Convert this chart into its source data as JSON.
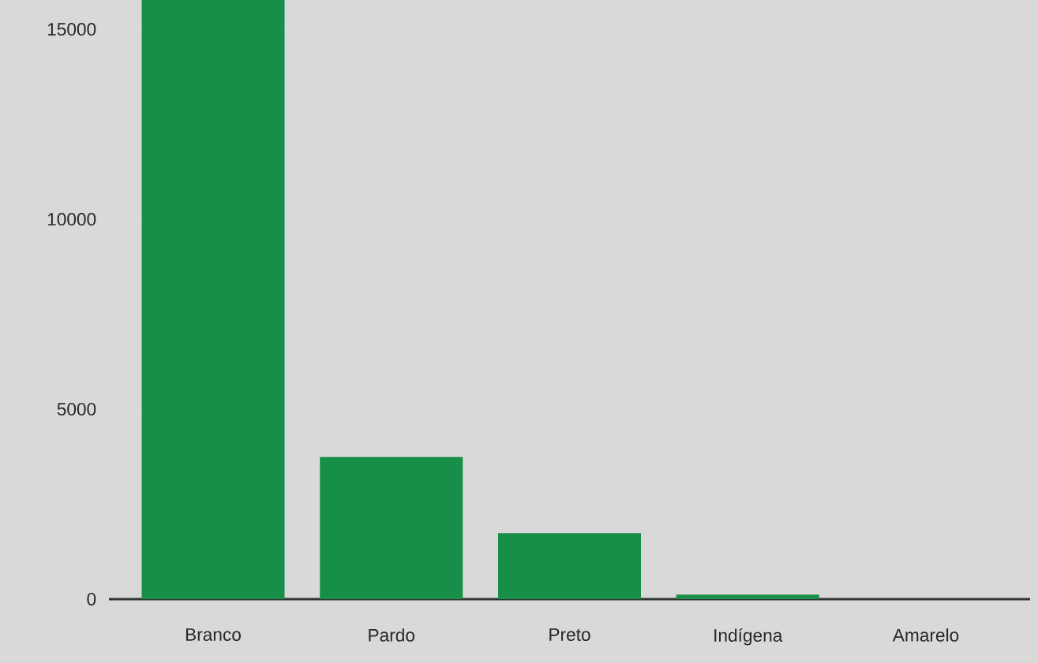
{
  "chart_data": {
    "type": "bar",
    "categories": [
      "Branco",
      "Pardo",
      "Preto",
      "Indígena",
      "Amarelo"
    ],
    "values": [
      15770,
      3740,
      1740,
      120,
      0
    ],
    "color": "#178f48",
    "ylim": [
      0,
      15770
    ],
    "yticks": [
      0,
      5000,
      10000,
      15000
    ],
    "grid": "y"
  }
}
